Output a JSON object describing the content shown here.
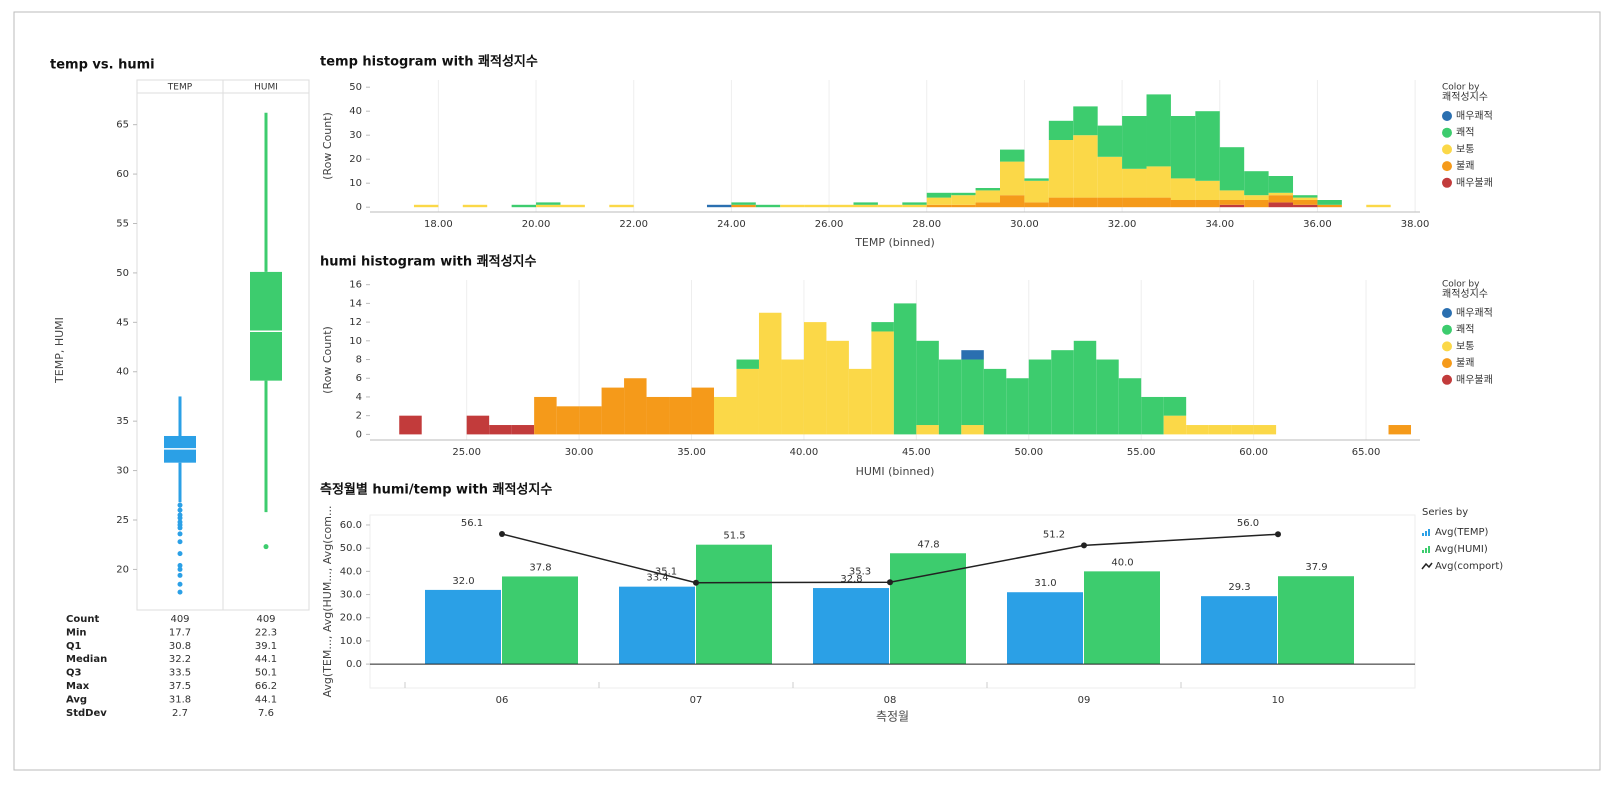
{
  "chart_data": [
    {
      "type": "box",
      "title": "temp vs. humi",
      "ylabel": "TEMP, HUMI",
      "ylim": [
        16.4,
        68
      ],
      "yticks": [
        20,
        25,
        30,
        35,
        40,
        45,
        50,
        55,
        60,
        65
      ],
      "stat_labels": [
        "Count",
        "Min",
        "Q1",
        "Median",
        "Q3",
        "Max",
        "Avg",
        "StdDev"
      ],
      "series": [
        {
          "name": "TEMP",
          "color": "#2ba0e6",
          "stats": [
            409,
            17.7,
            30.8,
            32.2,
            33.5,
            37.5,
            31.8,
            2.7
          ],
          "whisker_low": 26.8,
          "outliers": [
            17.7,
            18.5,
            19.4,
            20.0,
            20.4,
            21.6,
            22.8,
            23.6,
            24.2,
            24.5,
            24.8,
            25.2,
            25.5,
            26.0,
            26.5
          ]
        },
        {
          "name": "HUMI",
          "color": "#3dcc6e",
          "stats": [
            409,
            22.3,
            39.1,
            44.1,
            50.1,
            66.2,
            44.1,
            7.6
          ],
          "whisker_low": 25.8,
          "outliers": [
            22.3
          ]
        }
      ]
    },
    {
      "type": "histogram",
      "title": "temp histogram with 쾌적성지수",
      "xlabel": "TEMP (binned)",
      "ylabel": "(Row Count)",
      "legend_title": "Color by",
      "legend_field": "쾌적성지수",
      "grid": true,
      "bins": [
        17.5,
        18,
        18.5,
        19,
        19.5,
        20,
        20.5,
        21,
        21.5,
        22,
        22.5,
        23,
        23.5,
        24,
        24.5,
        25,
        25.5,
        26,
        26.5,
        27,
        27.5,
        28,
        28.5,
        29,
        29.5,
        30,
        30.5,
        31,
        31.5,
        32,
        32.5,
        33,
        33.5,
        34,
        34.5,
        35,
        35.5,
        36,
        36.5,
        37,
        37.5
      ],
      "xlim": [
        16.6,
        38.1
      ],
      "xticks": [
        {
          "value": 18,
          "label": "18.00"
        },
        {
          "value": 20,
          "label": "20.00"
        },
        {
          "value": 22,
          "label": "22.00"
        },
        {
          "value": 24,
          "label": "24.00"
        },
        {
          "value": 26,
          "label": "26.00"
        },
        {
          "value": 28,
          "label": "28.00"
        },
        {
          "value": 30,
          "label": "30.00"
        },
        {
          "value": 32,
          "label": "32.00"
        },
        {
          "value": 34,
          "label": "34.00"
        },
        {
          "value": 36,
          "label": "36.00"
        },
        {
          "value": 38,
          "label": "38.00"
        }
      ],
      "ylim": [
        -2,
        53
      ],
      "yticks": [
        0,
        10,
        20,
        30,
        40,
        50
      ],
      "series": [
        {
          "name": "매우쾌적",
          "color": "#2a6fb0",
          "values": [
            0,
            0,
            0,
            0,
            0,
            0,
            0,
            0,
            0,
            0,
            0,
            0,
            1,
            0,
            0,
            0,
            0,
            0,
            0,
            0,
            0,
            0,
            0,
            0,
            0,
            0,
            0,
            0,
            0,
            0,
            0,
            0,
            0,
            0,
            0,
            0,
            0,
            0,
            0,
            0
          ]
        },
        {
          "name": "쾌적",
          "color": "#3dcc6e",
          "values": [
            0,
            0,
            0,
            0,
            1,
            1,
            0,
            0,
            0,
            0,
            0,
            0,
            0,
            1,
            1,
            0,
            0,
            0,
            1,
            0,
            1,
            2,
            1,
            1,
            5,
            1,
            8,
            12,
            13,
            22,
            30,
            26,
            29,
            18,
            10,
            7,
            1,
            2,
            0,
            0
          ]
        },
        {
          "name": "보통",
          "color": "#fbd848",
          "values": [
            1,
            0,
            1,
            0,
            0,
            1,
            1,
            0,
            1,
            0,
            0,
            0,
            0,
            0,
            0,
            1,
            1,
            1,
            1,
            1,
            1,
            3,
            4,
            5,
            14,
            9,
            24,
            26,
            17,
            12,
            13,
            9,
            8,
            4,
            2,
            1,
            1,
            0,
            0,
            1
          ]
        },
        {
          "name": "불쾌",
          "color": "#f59a1a",
          "values": [
            0,
            0,
            0,
            0,
            0,
            0,
            0,
            0,
            0,
            0,
            0,
            0,
            0,
            1,
            0,
            0,
            0,
            0,
            0,
            0,
            0,
            1,
            1,
            2,
            5,
            2,
            4,
            4,
            4,
            4,
            4,
            3,
            3,
            2,
            3,
            3,
            2,
            1,
            0,
            0
          ]
        },
        {
          "name": "매우불쾌",
          "color": "#c23b3b",
          "values": [
            0,
            0,
            0,
            0,
            0,
            0,
            0,
            0,
            0,
            0,
            0,
            0,
            0,
            0,
            0,
            0,
            0,
            0,
            0,
            0,
            0,
            0,
            0,
            0,
            0,
            0,
            0,
            0,
            0,
            0,
            0,
            0,
            0,
            1,
            0,
            2,
            1,
            0,
            0,
            0
          ]
        }
      ]
    },
    {
      "type": "histogram",
      "title": "humi histogram with 쾌적성지수",
      "xlabel": "HUMI (binned)",
      "ylabel": "(Row Count)",
      "legend_title": "Color by",
      "legend_field": "쾌적성지수",
      "grid": true,
      "bins": [
        22,
        23,
        24,
        25,
        26,
        27,
        28,
        29,
        30,
        31,
        32,
        33,
        34,
        35,
        36,
        37,
        38,
        39,
        40,
        41,
        42,
        43,
        44,
        45,
        46,
        47,
        48,
        49,
        50,
        51,
        52,
        53,
        54,
        55,
        56,
        57,
        58,
        59,
        60,
        61,
        62,
        63,
        64,
        65,
        66,
        67
      ],
      "xlim": [
        20.7,
        67.4
      ],
      "xticks": [
        {
          "value": 25,
          "label": "25.00"
        },
        {
          "value": 30,
          "label": "30.00"
        },
        {
          "value": 35,
          "label": "35.00"
        },
        {
          "value": 40,
          "label": "40.00"
        },
        {
          "value": 45,
          "label": "45.00"
        },
        {
          "value": 50,
          "label": "50.00"
        },
        {
          "value": 55,
          "label": "55.00"
        },
        {
          "value": 60,
          "label": "60.00"
        },
        {
          "value": 65,
          "label": "65.00"
        }
      ],
      "ylim": [
        -0.6,
        16.5
      ],
      "yticks": [
        0,
        2,
        4,
        6,
        8,
        10,
        12,
        14,
        16
      ],
      "series": [
        {
          "name": "매우쾌적",
          "color": "#2a6fb0",
          "values": [
            0,
            0,
            0,
            0,
            0,
            0,
            0,
            0,
            0,
            0,
            0,
            0,
            0,
            0,
            0,
            0,
            0,
            0,
            0,
            0,
            0,
            0,
            0,
            0,
            0,
            1,
            0,
            0,
            0,
            0,
            0,
            0,
            0,
            0,
            0,
            0,
            0,
            0,
            0,
            0,
            0,
            0,
            0,
            0,
            0
          ]
        },
        {
          "name": "쾌적",
          "color": "#3dcc6e",
          "values": [
            0,
            0,
            0,
            0,
            0,
            0,
            0,
            0,
            0,
            0,
            0,
            0,
            0,
            0,
            0,
            1,
            0,
            0,
            0,
            0,
            0,
            1,
            14,
            9,
            8,
            7,
            7,
            6,
            8,
            9,
            10,
            8,
            6,
            4,
            2,
            0,
            0,
            0,
            0,
            0,
            0,
            0,
            0,
            0,
            0
          ]
        },
        {
          "name": "보통",
          "color": "#fbd848",
          "values": [
            0,
            0,
            0,
            0,
            0,
            0,
            0,
            0,
            0,
            0,
            0,
            0,
            0,
            0,
            4,
            7,
            13,
            8,
            12,
            10,
            7,
            11,
            0,
            1,
            0,
            1,
            0,
            0,
            0,
            0,
            0,
            0,
            0,
            0,
            2,
            1,
            1,
            1,
            1,
            0,
            0,
            0,
            0,
            0,
            0
          ]
        },
        {
          "name": "불쾌",
          "color": "#f59a1a",
          "values": [
            0,
            0,
            0,
            0,
            0,
            0,
            4,
            3,
            3,
            5,
            6,
            4,
            4,
            5,
            0,
            0,
            0,
            0,
            0,
            0,
            0,
            0,
            0,
            0,
            0,
            0,
            0,
            0,
            0,
            0,
            0,
            0,
            0,
            0,
            0,
            0,
            0,
            0,
            0,
            0,
            0,
            0,
            0,
            0,
            1
          ]
        },
        {
          "name": "매우불쾌",
          "color": "#c23b3b",
          "values": [
            2,
            0,
            0,
            2,
            1,
            1,
            0,
            0,
            0,
            0,
            0,
            0,
            0,
            0,
            0,
            0,
            0,
            0,
            0,
            0,
            0,
            0,
            0,
            0,
            0,
            0,
            0,
            0,
            0,
            0,
            0,
            0,
            0,
            0,
            0,
            0,
            0,
            0,
            0,
            0,
            0,
            0,
            0,
            0,
            0
          ]
        }
      ]
    },
    {
      "type": "combo",
      "title": "측정월별 humi/temp with 쾌적성지수",
      "xlabel": "측정월",
      "ylabel": "Avg(TEM..., Avg(HUM..., Avg(com...",
      "legend_title": "Series by",
      "categories": [
        "06",
        "07",
        "08",
        "09",
        "10"
      ],
      "ylim": [
        -10.3,
        64.3
      ],
      "yticks": [
        {
          "value": 0,
          "label": "0.0"
        },
        {
          "value": 10,
          "label": "10.0"
        },
        {
          "value": 20,
          "label": "20.0"
        },
        {
          "value": 30,
          "label": "30.0"
        },
        {
          "value": 40,
          "label": "40.0"
        },
        {
          "value": 50,
          "label": "50.0"
        },
        {
          "value": 60,
          "label": "60.0"
        }
      ],
      "series": [
        {
          "name": "Avg(TEMP)",
          "kind": "bar",
          "color": "#2ba0e6",
          "values": [
            32,
            33.4,
            32.8,
            31,
            29.3
          ],
          "value_labels": [
            "32.0",
            "33.4",
            "32.8",
            "31.0",
            "29.3"
          ]
        },
        {
          "name": "Avg(HUMI)",
          "kind": "bar",
          "color": "#3dcc6e",
          "values": [
            37.8,
            51.5,
            47.8,
            40,
            37.9
          ],
          "value_labels": [
            "37.8",
            "51.5",
            "47.8",
            "40.0",
            "37.9"
          ]
        },
        {
          "name": "Avg(comport)",
          "kind": "line",
          "color": "#222222",
          "values": [
            56.1,
            35.1,
            35.3,
            51.2,
            56.0
          ],
          "value_labels": [
            "56.1",
            "35.1",
            "35.3",
            "51.2",
            "56.0"
          ]
        }
      ]
    }
  ]
}
